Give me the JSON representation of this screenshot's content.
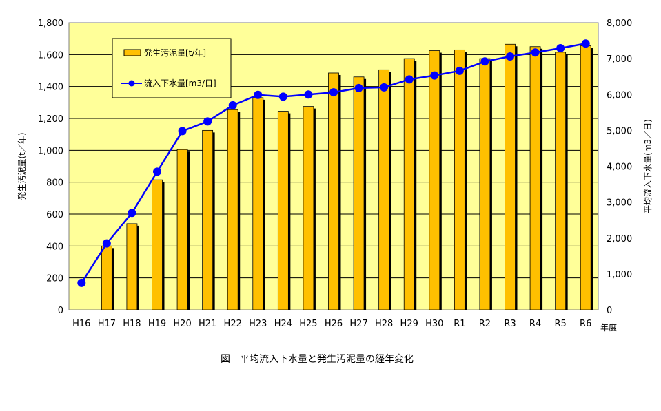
{
  "caption": "図　平均流入下水量と発生汚泥量の経年変化",
  "chart_data": {
    "type": "bar",
    "categories": [
      "H16",
      "H17",
      "H18",
      "H19",
      "H20",
      "H21",
      "H22",
      "H23",
      "H24",
      "H25",
      "H26",
      "H27",
      "H28",
      "H29",
      "H30",
      "R1",
      "R2",
      "R3",
      "R4",
      "R5",
      "R6"
    ],
    "xlabel": "年度",
    "ylabel_left": "発生汚泥量(t／年)",
    "ylabel_right": "平均流入下水量(m3／日)",
    "ylim_left": [
      0,
      1800
    ],
    "ylim_right": [
      0,
      8000
    ],
    "yticks_left": [
      "0",
      "200",
      "400",
      "600",
      "800",
      "1,000",
      "1,200",
      "1,400",
      "1,600",
      "1,800"
    ],
    "yticks_right": [
      "0",
      "1,000",
      "2,000",
      "3,000",
      "4,000",
      "5,000",
      "6,000",
      "7,000",
      "8,000"
    ],
    "grid": true,
    "legend_position": "top-left",
    "series": [
      {
        "name": "発生汚泥量[t/年]",
        "type": "bar",
        "axis": "left",
        "color": "#FFC000",
        "values": [
          0,
          400,
          540,
          815,
          1005,
          1125,
          1255,
          1330,
          1245,
          1275,
          1485,
          1460,
          1505,
          1575,
          1625,
          1630,
          1575,
          1665,
          1650,
          1615,
          1655
        ]
      },
      {
        "name": "流入下水量[m3/日]",
        "type": "line",
        "axis": "right",
        "color": "#0000FF",
        "values": [
          750,
          1850,
          2700,
          3850,
          4980,
          5250,
          5700,
          5990,
          5940,
          6000,
          6060,
          6180,
          6200,
          6420,
          6530,
          6660,
          6920,
          7060,
          7170,
          7290,
          7420
        ]
      }
    ],
    "plot_bg": "#FFFF99"
  }
}
